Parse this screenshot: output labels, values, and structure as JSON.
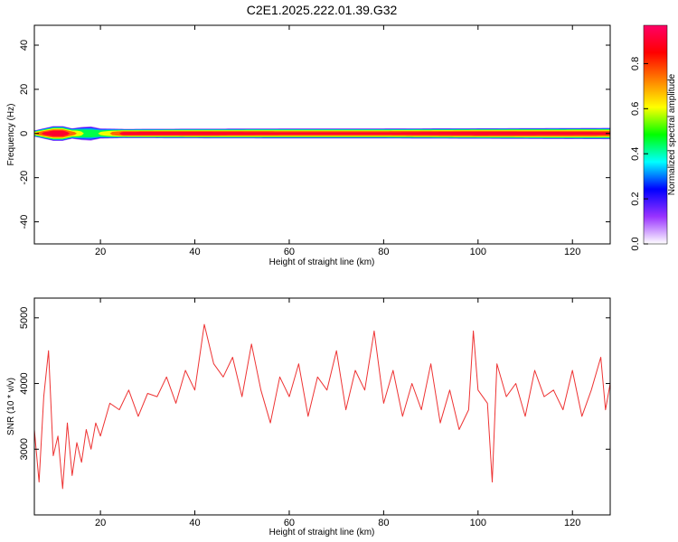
{
  "title": "C2E1.2025.222.01.39.G32",
  "chart_data": [
    {
      "type": "heatmap",
      "xlabel": "Height of straight line (km)",
      "ylabel": "Frequency (Hz)",
      "xlim": [
        6,
        128
      ],
      "ylim": [
        -50,
        49
      ],
      "xticks": [
        20,
        40,
        60,
        80,
        100,
        120
      ],
      "yticks": [
        -40,
        -20,
        0,
        20,
        40
      ],
      "x_tick_labels": [
        "20",
        "40",
        "60",
        "80",
        "100",
        "120"
      ],
      "y_tick_labels": [
        "-40",
        "-20",
        "0",
        "20",
        "40"
      ],
      "band": {
        "center_frequency": 0,
        "half_width_hz": [
          [
            6,
            1.5
          ],
          [
            8,
            2.5
          ],
          [
            10,
            3.5
          ],
          [
            12,
            3.5
          ],
          [
            14,
            2.5
          ],
          [
            16,
            3.2
          ],
          [
            18,
            3.5
          ],
          [
            20,
            2.5
          ],
          [
            25,
            2.2
          ],
          [
            40,
            2.3
          ],
          [
            60,
            2.4
          ],
          [
            80,
            2.4
          ],
          [
            100,
            2.5
          ],
          [
            128,
            2.7
          ]
        ],
        "peak_amplitude": [
          [
            6,
            0.7
          ],
          [
            8,
            0.9
          ],
          [
            10,
            1.0
          ],
          [
            12,
            1.0
          ],
          [
            14,
            0.8
          ],
          [
            16,
            0.6
          ],
          [
            18,
            0.55
          ],
          [
            20,
            0.6
          ],
          [
            25,
            0.95
          ],
          [
            40,
            0.95
          ],
          [
            60,
            0.9
          ],
          [
            80,
            0.9
          ],
          [
            100,
            0.95
          ],
          [
            128,
            0.9
          ]
        ]
      },
      "colorbar": {
        "label": "Normalized spectral amplitude",
        "range": [
          0,
          0.97
        ],
        "ticks": [
          0,
          0.2,
          0.4,
          0.6,
          0.8
        ],
        "tick_labels": [
          "0.0",
          "0.2",
          "0.4",
          "0.6",
          "0.8"
        ],
        "colors": [
          "#ffffff",
          "#9933ff",
          "#0000ff",
          "#00ffff",
          "#00ff00",
          "#ffff00",
          "#ff8000",
          "#ff0000",
          "#ff0066"
        ]
      }
    },
    {
      "type": "line",
      "xlabel": "Height of straight line (km)",
      "ylabel": "SNR (10 * v/v)",
      "xlim": [
        6,
        128
      ],
      "ylim": [
        2000,
        5300
      ],
      "xticks": [
        20,
        40,
        60,
        80,
        100,
        120
      ],
      "yticks": [
        3000,
        4000,
        5000
      ],
      "x_tick_labels": [
        "20",
        "40",
        "60",
        "80",
        "100",
        "120"
      ],
      "y_tick_labels": [
        "3000",
        "4000",
        "5000"
      ],
      "color": "#ee3333",
      "x": [
        6,
        7,
        8,
        9,
        10,
        11,
        12,
        13,
        14,
        15,
        16,
        17,
        18,
        19,
        20,
        22,
        24,
        26,
        28,
        30,
        32,
        34,
        36,
        38,
        40,
        42,
        44,
        46,
        48,
        50,
        52,
        54,
        56,
        58,
        60,
        62,
        64,
        66,
        68,
        70,
        72,
        74,
        76,
        78,
        80,
        82,
        84,
        86,
        88,
        90,
        92,
        94,
        96,
        98,
        99,
        100,
        102,
        103,
        104,
        106,
        108,
        110,
        112,
        114,
        116,
        118,
        120,
        122,
        124,
        126,
        127,
        128
      ],
      "y": [
        3300,
        2500,
        3800,
        4500,
        2900,
        3200,
        2400,
        3400,
        2600,
        3100,
        2800,
        3300,
        3000,
        3400,
        3200,
        3700,
        3600,
        3900,
        3500,
        3850,
        3800,
        4100,
        3700,
        4200,
        3900,
        4900,
        4300,
        4100,
        4400,
        3800,
        4600,
        3900,
        3400,
        4100,
        3800,
        4300,
        3500,
        4100,
        3900,
        4500,
        3600,
        4200,
        3900,
        4800,
        3700,
        4200,
        3500,
        4000,
        3600,
        4300,
        3400,
        3900,
        3300,
        3600,
        4800,
        3900,
        3700,
        2500,
        4300,
        3800,
        4000,
        3500,
        4200,
        3800,
        3900,
        3600,
        4200,
        3500,
        3900,
        4400,
        3600,
        4000
      ]
    }
  ]
}
